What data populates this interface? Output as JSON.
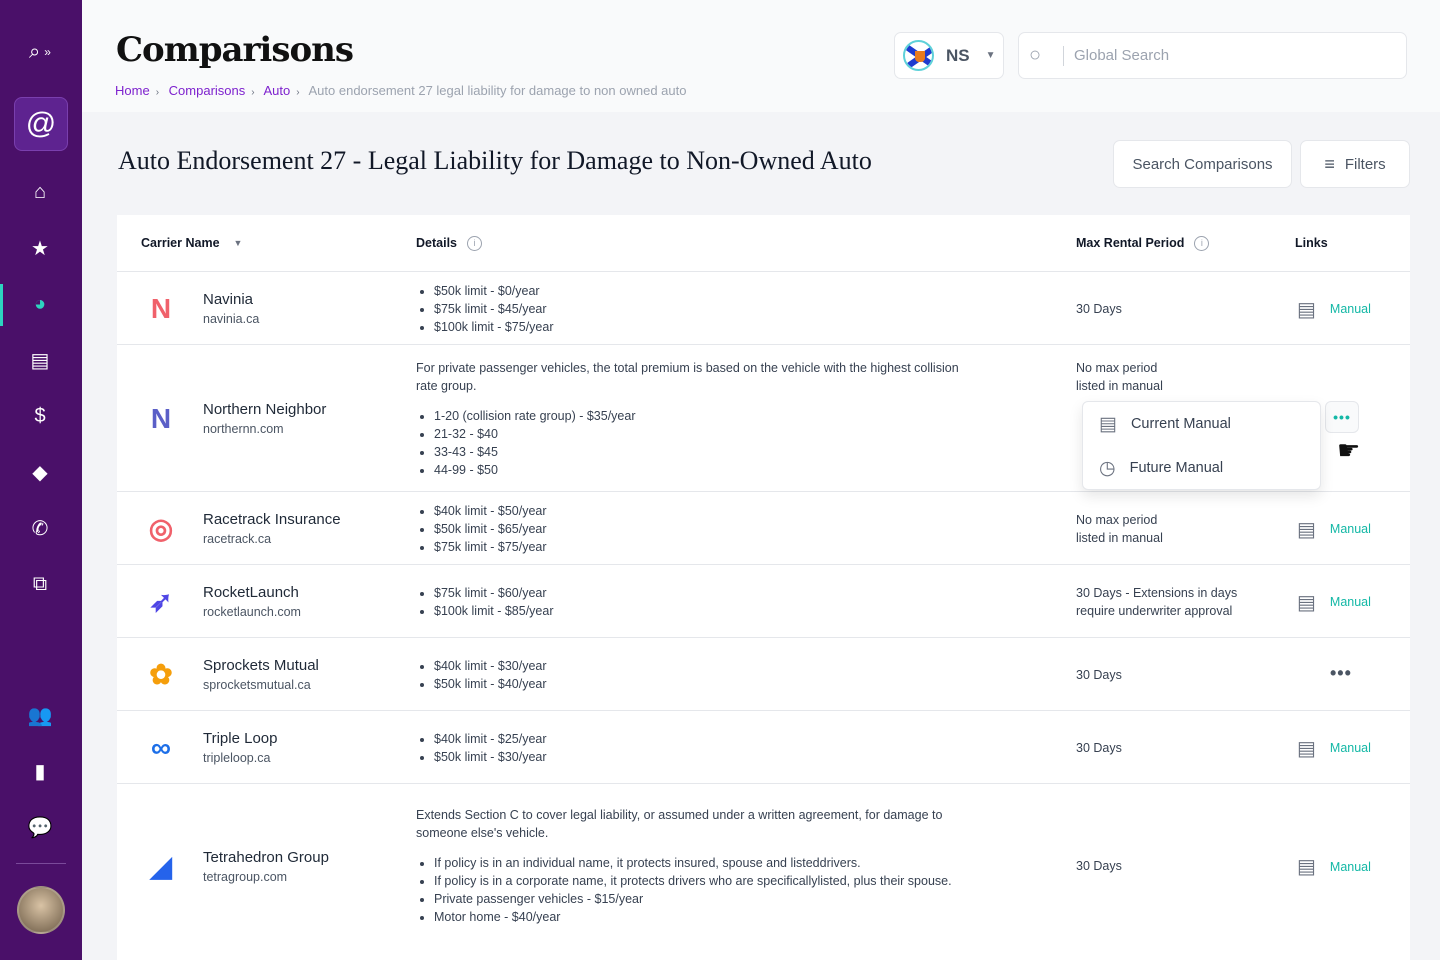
{
  "sidebar": {
    "items": [
      "search-radar",
      "home",
      "favorites",
      "comparisons",
      "documents",
      "billing",
      "education",
      "contacts",
      "integrations",
      "users",
      "analytics",
      "chat"
    ],
    "active": "comparisons"
  },
  "header": {
    "title": "Comparisons",
    "breadcrumb": [
      "Home",
      "Comparisons",
      "Auto",
      "Auto endorsement 27 legal liability for damage to non owned auto"
    ],
    "province": "NS",
    "search_placeholder": "Global Search"
  },
  "page": {
    "title": "Auto Endorsement 27 - Legal Liability for Damage to Non-Owned Auto",
    "search_button": "Search Comparisons",
    "filters_button": "Filters"
  },
  "table": {
    "columns": {
      "carrier": "Carrier Name",
      "details": "Details",
      "rental": "Max Rental Period",
      "links": "Links"
    },
    "rows": [
      {
        "name": "Navinia",
        "url": "navinia.ca",
        "note": "",
        "items": [
          "$50k limit - $0/year",
          "$75k limit - $45/year",
          "$100k limit - $75/year"
        ],
        "rental": "30 Days",
        "link": "Manual"
      },
      {
        "name": "Northern Neighbor",
        "url": "northernn.com",
        "note": "For private passenger vehicles, the total premium is based on the vehicle with the highest collision rate group.",
        "items": [
          "1-20 (collision rate group) - $35/year",
          "21-32 - $40",
          "33-43 - $45",
          "44-99 - $50"
        ],
        "rental": "No max period listed in manual",
        "link": ""
      },
      {
        "name": "Racetrack Insurance",
        "url": "racetrack.ca",
        "note": "",
        "items": [
          "$40k limit - $50/year",
          "$50k limit - $65/year",
          "$75k limit - $75/year"
        ],
        "rental": "No max period listed in manual",
        "link": "Manual"
      },
      {
        "name": "RocketLaunch",
        "url": "rocketlaunch.com",
        "note": "",
        "items": [
          "$75k limit - $60/year",
          "$100k limit - $85/year"
        ],
        "rental": "30 Days - Extensions in days require underwriter approval",
        "link": "Manual"
      },
      {
        "name": "Sprockets Mutual",
        "url": "sprocketsmutual.ca",
        "note": "",
        "items": [
          "$40k limit - $30/year",
          "$50k limit - $40/year"
        ],
        "rental": "30 Days",
        "link": ""
      },
      {
        "name": "Triple Loop",
        "url": "tripleloop.ca",
        "note": "",
        "items": [
          "$40k limit - $25/year",
          "$50k limit - $30/year"
        ],
        "rental": "30 Days",
        "link": "Manual"
      },
      {
        "name": "Tetrahedron Group",
        "url": "tetragroup.com",
        "note": "Extends Section C to cover legal liability, or assumed under a written agreement, for damage to someone else's vehicle.",
        "items": [
          "If policy is in an individual name, it protects insured, spouse and listeddrivers.",
          "If policy is in a corporate name, it protects drivers who are specificallylisted, plus their spouse.",
          "Private passenger vehicles - $15/year",
          "Motor home - $40/year"
        ],
        "rental": "30 Days",
        "link": "Manual"
      }
    ]
  },
  "menu": {
    "items": [
      "Current Manual",
      "Future Manual"
    ]
  },
  "colors": {
    "sidebar": "#4a1069",
    "accent": "#14b8a6",
    "link": "#7e22ce"
  }
}
